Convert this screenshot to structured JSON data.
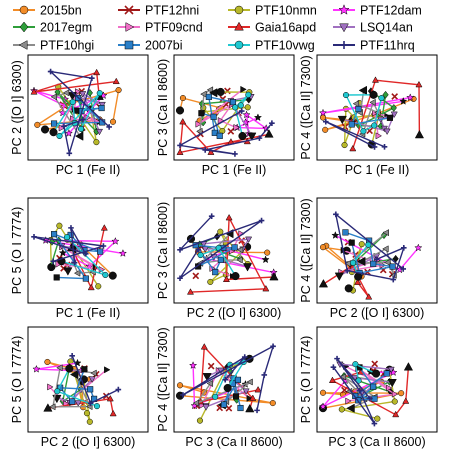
{
  "figure": {
    "legend": [
      {
        "name": "2015bn",
        "color": "#F28C28",
        "marker": "circle"
      },
      {
        "name": "PTF12hni",
        "color": "#A01818",
        "marker": "x"
      },
      {
        "name": "PTF10nmn",
        "color": "#B8B82A",
        "marker": "circle"
      },
      {
        "name": "PTF12dam",
        "color": "#FF33FF",
        "marker": "star"
      },
      {
        "name": "2017egm",
        "color": "#2E9E3A",
        "marker": "diamond"
      },
      {
        "name": "PTF09cnd",
        "color": "#F070C8",
        "marker": "triangle-right"
      },
      {
        "name": "Gaia16apd",
        "color": "#E02828",
        "marker": "triangle-up"
      },
      {
        "name": "LSQ14an",
        "color": "#A070C0",
        "marker": "triangle-down"
      },
      {
        "name": "PTF10hgi",
        "color": "#8C8C8C",
        "marker": "triangle-left"
      },
      {
        "name": "2007bi",
        "color": "#2A7FC8",
        "marker": "square"
      },
      {
        "name": "PTF10vwg",
        "color": "#20C8D0",
        "marker": "circle"
      },
      {
        "name": "PTF11hrq",
        "color": "#2A2A78",
        "marker": "plus"
      }
    ]
  },
  "chart_data": [
    {
      "type": "scatter",
      "xlabel": "PC 1 (Fe II)",
      "ylabel": "PC 2 ([O I] 6300)",
      "grid": false
    },
    {
      "type": "scatter",
      "xlabel": "PC 1 (Fe II)",
      "ylabel": "PC 3 (Ca II 8600)",
      "grid": false
    },
    {
      "type": "scatter",
      "xlabel": "PC 1 (Fe II)",
      "ylabel": "PC 4 ([Ca II] 7300)",
      "grid": false
    },
    {
      "type": "scatter",
      "xlabel": "PC 1 (Fe II)",
      "ylabel": "PC 5 (O I 7774)",
      "grid": false
    },
    {
      "type": "scatter",
      "xlabel": "PC 2 ([O I] 6300)",
      "ylabel": "PC 3 (Ca II 8600)",
      "grid": false
    },
    {
      "type": "scatter",
      "xlabel": "PC 2 ([O I] 6300)",
      "ylabel": "PC 4 ([Ca II] 7300)",
      "grid": false
    },
    {
      "type": "scatter",
      "xlabel": "PC 2 ([O I] 6300)",
      "ylabel": "PC 5 (O I 7774)",
      "grid": false
    },
    {
      "type": "scatter",
      "xlabel": "PC 3 (Ca II 8600)",
      "ylabel": "PC 4 ([Ca II] 7300)",
      "grid": false
    },
    {
      "type": "scatter",
      "xlabel": "PC 3 (Ca II 8600)",
      "ylabel": "PC 5 (O I 7774)",
      "grid": false
    }
  ]
}
